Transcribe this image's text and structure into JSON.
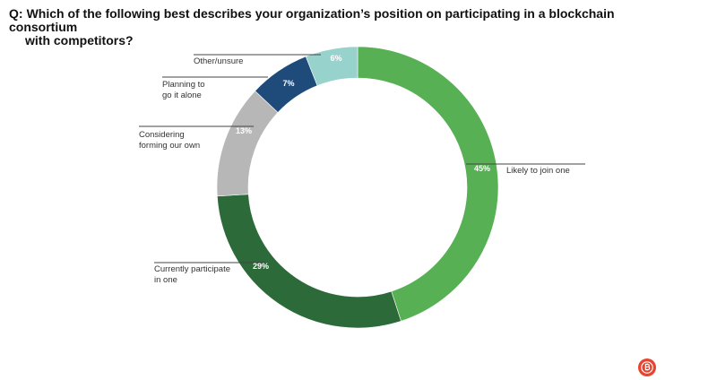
{
  "question": {
    "prefix": "Q:",
    "line1": "Which of the following best describes your organization’s position on participating in a blockchain consortium",
    "line2": "with competitors?"
  },
  "logo": {
    "icon": "bitcoin-icon",
    "color": "#e8432e"
  },
  "chart_data": {
    "type": "pie",
    "donut": true,
    "start": "top",
    "direction": "clockwise",
    "slices": [
      {
        "label": [
          "Likely to join one"
        ],
        "value": 45,
        "pct_label": "45%",
        "color": "#58b055"
      },
      {
        "label": [
          "Currently participate",
          "in one"
        ],
        "value": 29,
        "pct_label": "29%",
        "color": "#2d6a3a"
      },
      {
        "label": [
          "Considering",
          "forming our own"
        ],
        "value": 13,
        "pct_label": "13%",
        "color": "#b7b7b7"
      },
      {
        "label": [
          "Planning to",
          "go it alone"
        ],
        "value": 7,
        "pct_label": "7%",
        "color": "#1e4b7a"
      },
      {
        "label": [
          "Other/unsure"
        ],
        "value": 6,
        "pct_label": "6%",
        "color": "#98d2cc"
      }
    ]
  }
}
